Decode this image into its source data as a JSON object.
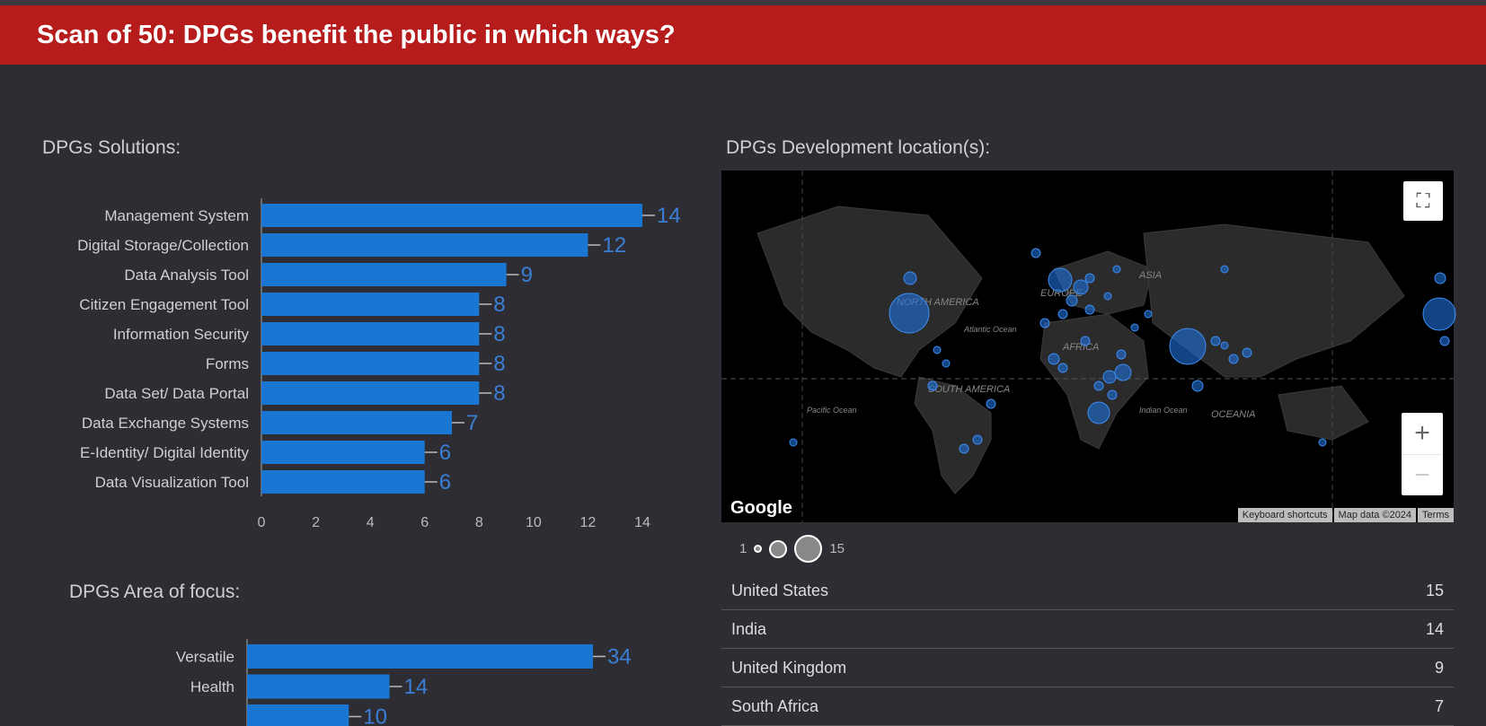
{
  "header": {
    "title": "Scan of 50: DPGs benefit the public in which ways?"
  },
  "chart_data": [
    {
      "type": "bar",
      "title": "DPGs Solutions:",
      "orientation": "horizontal",
      "categories": [
        "Management System",
        "Digital Storage/Collection",
        "Data Analysis Tool",
        "Citizen Engagement Tool",
        "Information Security",
        "Forms",
        "Data Set/ Data Portal",
        "Data Exchange Systems",
        "E-Identity/ Digital Identity",
        "Data Visualization Tool"
      ],
      "values": [
        14,
        12,
        9,
        8,
        8,
        8,
        8,
        7,
        6,
        6
      ],
      "xlim": [
        0,
        14
      ],
      "xticks": [
        "0",
        "2",
        "4",
        "6",
        "8",
        "10",
        "12",
        "14"
      ],
      "color": "#1976d2"
    },
    {
      "type": "bar",
      "title": "DPGs Area of focus:",
      "orientation": "horizontal",
      "categories": [
        "Versatile",
        "Health",
        ""
      ],
      "values": [
        34,
        14,
        10
      ],
      "color": "#1976d2"
    }
  ],
  "map": {
    "title": "DPGs Development location(s):",
    "logo": "Google",
    "attribution": [
      "Keyboard shortcuts",
      "Map data ©2024",
      "Terms"
    ],
    "labels": [
      "NORTH AMERICA",
      "EUROPE",
      "ASIA",
      "AFRICA",
      "SOUTH AMERICA",
      "OCEANIA",
      "Atlantic Ocean",
      "Pacific Ocean",
      "Indian Ocean"
    ],
    "legend": {
      "min": "1",
      "max": "15"
    },
    "bubble_color": "#1e6fd9"
  },
  "table": [
    {
      "country": "United States",
      "count": "15"
    },
    {
      "country": "India",
      "count": "14"
    },
    {
      "country": "United Kingdom",
      "count": "9"
    },
    {
      "country": "South Africa",
      "count": "7"
    }
  ]
}
